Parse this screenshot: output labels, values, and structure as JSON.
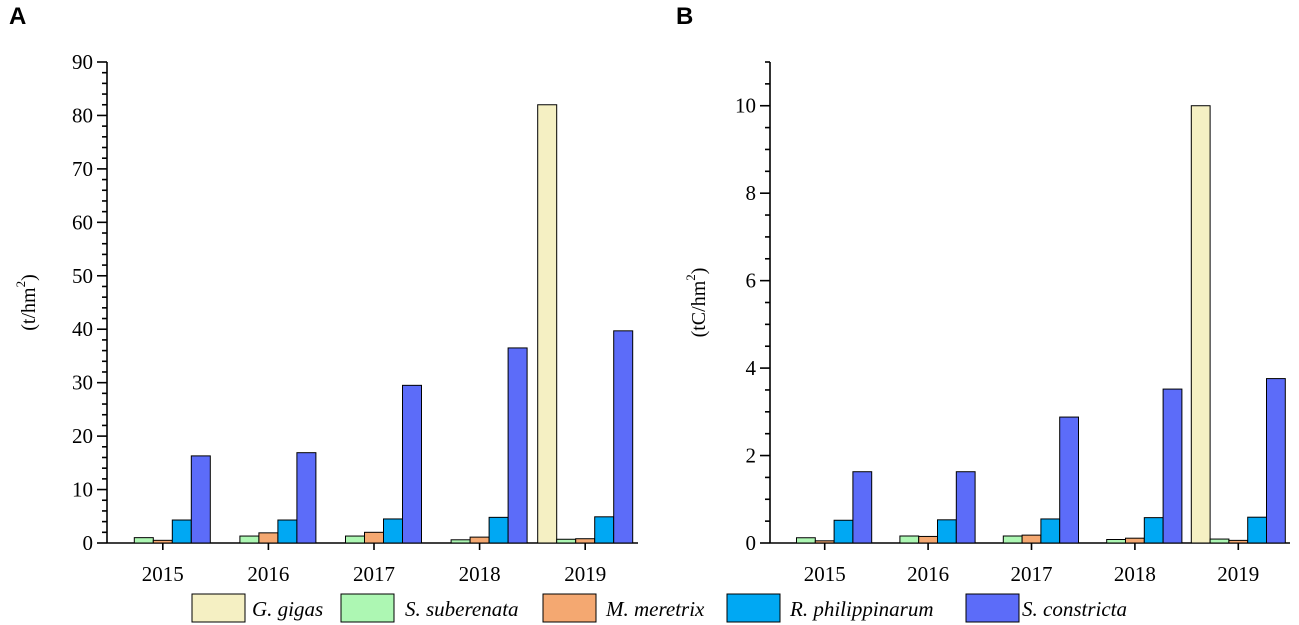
{
  "colors": {
    "series": [
      "#f5f0c3",
      "#adf7b3",
      "#f4a871",
      "#00a8f3",
      "#5c6cf9"
    ],
    "axis": "#000000",
    "background": "#ffffff"
  },
  "legend": {
    "items": [
      "G. gigas",
      "S. suberenata",
      "M. meretrix",
      "R. philippinarum",
      "S. constricta"
    ]
  },
  "chart_data": [
    {
      "panel": "A",
      "type": "bar",
      "ylabel": "(t/hm",
      "ylabel_sup": "2",
      "ylabel_close": ")",
      "ylim": [
        0,
        90
      ],
      "y_major_ticks": [
        0,
        10,
        20,
        30,
        40,
        50,
        60,
        70,
        80,
        90
      ],
      "y_minor_step": 2,
      "categories": [
        "2015",
        "2016",
        "2017",
        "2018",
        "2019"
      ],
      "series": [
        {
          "name": "G. gigas",
          "values": [
            0,
            0,
            0,
            0,
            82.0
          ]
        },
        {
          "name": "S. suberenata",
          "values": [
            1.0,
            1.3,
            1.3,
            0.6,
            0.7
          ]
        },
        {
          "name": "M. meretrix",
          "values": [
            0.5,
            1.9,
            2.0,
            1.1,
            0.8
          ]
        },
        {
          "name": "R. philippinarum",
          "values": [
            4.3,
            4.3,
            4.5,
            4.8,
            4.9
          ]
        },
        {
          "name": "S. constricta",
          "values": [
            16.3,
            16.9,
            29.5,
            36.5,
            39.7
          ]
        }
      ]
    },
    {
      "panel": "B",
      "type": "bar",
      "ylabel": "(tC/hm",
      "ylabel_sup": "2",
      "ylabel_close": ")",
      "ylim": [
        0,
        11
      ],
      "y_major_ticks": [
        0,
        2,
        4,
        6,
        8,
        10
      ],
      "y_minor_step": 0.5,
      "categories": [
        "2015",
        "2016",
        "2017",
        "2018",
        "2019"
      ],
      "series": [
        {
          "name": "G. gigas",
          "values": [
            0,
            0,
            0,
            0,
            10.0
          ]
        },
        {
          "name": "S. suberenata",
          "values": [
            0.12,
            0.16,
            0.16,
            0.08,
            0.09
          ]
        },
        {
          "name": "M. meretrix",
          "values": [
            0.05,
            0.15,
            0.18,
            0.11,
            0.06
          ]
        },
        {
          "name": "R. philippinarum",
          "values": [
            0.52,
            0.53,
            0.55,
            0.58,
            0.59
          ]
        },
        {
          "name": "S. constricta",
          "values": [
            1.63,
            1.63,
            2.88,
            3.52,
            3.76
          ]
        }
      ]
    }
  ]
}
